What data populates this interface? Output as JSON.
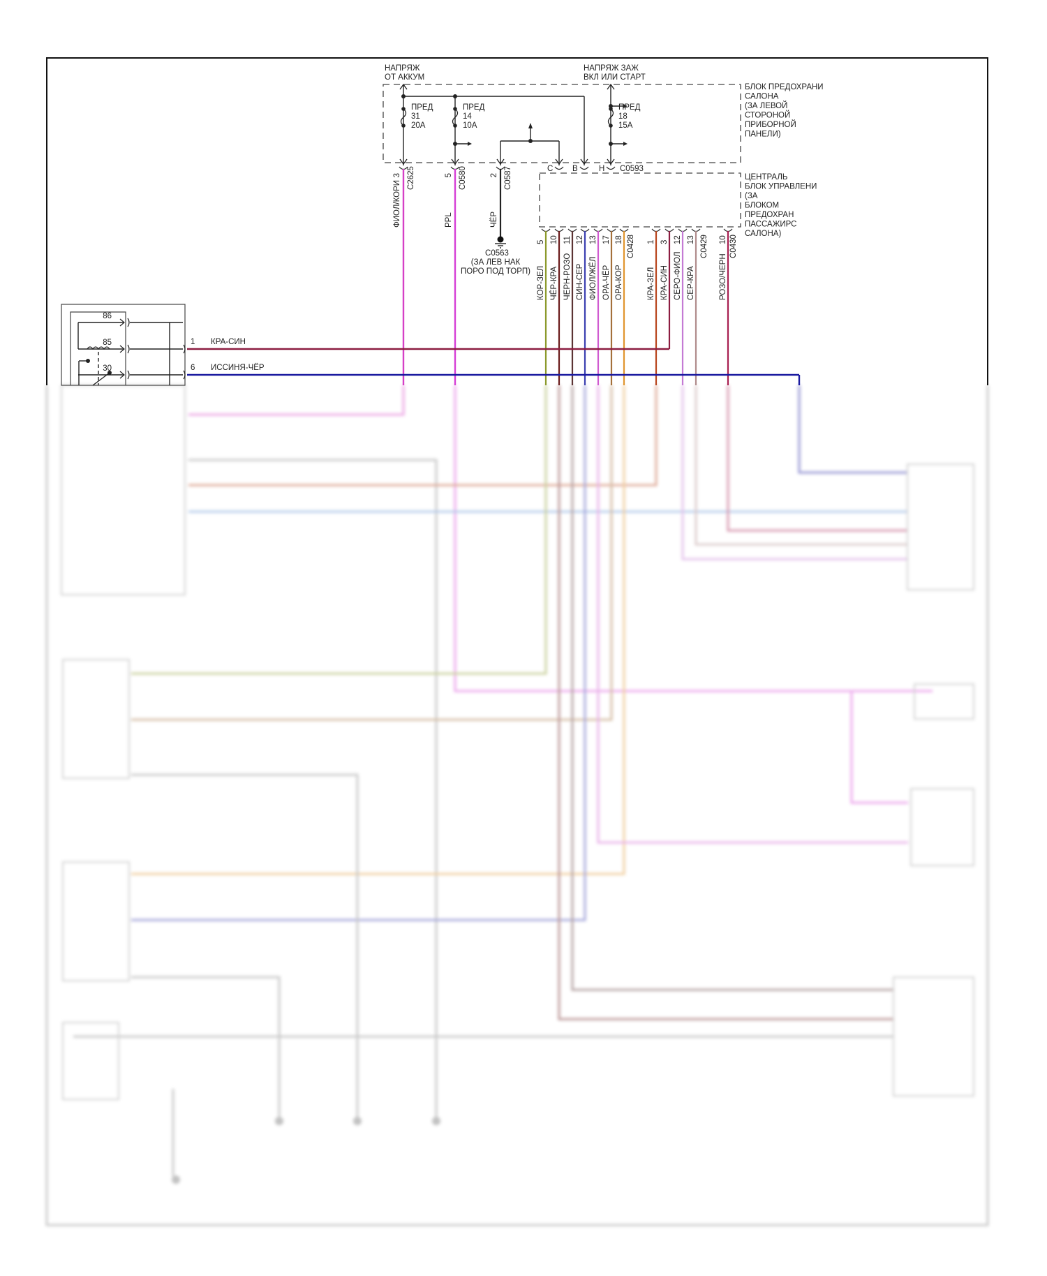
{
  "power_labels": {
    "battery": [
      "НАПРЯЖ",
      "ОТ АККУМ"
    ],
    "ignition": [
      "НАПРЯЖ ЗАЖ",
      "ВКЛ ИЛИ СТАРТ"
    ]
  },
  "fuse_block": {
    "label": [
      "БЛОК ПРЕДОХРАНИ",
      "САЛОНА",
      "(ЗА ЛЕВОЙ",
      "СТОРОНОЙ",
      "ПРИБОРНОЙ",
      "ПАНЕЛИ)"
    ],
    "fuses": [
      {
        "name": "ПРЕД",
        "number": "31",
        "rating": "20A"
      },
      {
        "name": "ПРЕД",
        "number": "14",
        "rating": "10A"
      },
      {
        "name": "ПРЕД",
        "number": "18",
        "rating": "15A"
      }
    ],
    "pins": [
      "C",
      "B",
      "H"
    ],
    "connector": "C0593"
  },
  "top_wires": [
    {
      "pin": "3",
      "color_label": "ФИОЛ/КОРИ",
      "connector": "C2625",
      "color": "#d63fc6"
    },
    {
      "pin": "5",
      "color_label": "PPL",
      "connector": "C0580",
      "color": "#d63fd6"
    },
    {
      "pin": "2",
      "color_label": "ЧЁР",
      "connector": "C0587",
      "color": "#222222"
    }
  ],
  "ground": {
    "id": "C0563",
    "location": [
      "(ЗА ЛЕВ НАК",
      "ПОРО ПОД ТОРП)"
    ]
  },
  "central_module": {
    "label": [
      "ЦЕНТРАЛЬ",
      "БЛОК УПРАВЛЕНИ",
      "(ЗА",
      "БЛОКОМ",
      "ПРЕДОХРАН",
      "ПАССАЖИРС",
      "САЛОНА)"
    ],
    "connectors": [
      {
        "id": "C0428",
        "wires": [
          {
            "pin": "5",
            "color_label": "КОР-ЗЕЛ",
            "color": "#8c9a2c"
          },
          {
            "pin": "10",
            "color_label": "ЧЁР-КРА",
            "color": "#6b1c1c"
          },
          {
            "pin": "11",
            "color_label": "ЧЕРН-РОЗО",
            "color": "#5c3434"
          },
          {
            "pin": "12",
            "color_label": "СИН-СЕР",
            "color": "#3b3fb0"
          },
          {
            "pin": "13",
            "color_label": "ФИОЛ/ЖЁЛ",
            "color": "#d05ad0"
          },
          {
            "pin": "17",
            "color_label": "ОРА-ЧЁР",
            "color": "#a4703a"
          },
          {
            "pin": "18",
            "color_label": "ОРА-КОР",
            "color": "#e0952e"
          }
        ]
      },
      {
        "id": "C0429",
        "wires": [
          {
            "pin": "1",
            "color_label": "КРА-ЗЕЛ",
            "color": "#b8461e"
          },
          {
            "pin": "3",
            "color_label": "КРА-СИН",
            "color": "#8c1c40"
          },
          {
            "pin": "12",
            "color_label": "СЕРО-ФИОЛ",
            "color": "#c47ad4"
          },
          {
            "pin": "13",
            "color_label": "СЕР-КРА",
            "color": "#b08c8c"
          }
        ]
      },
      {
        "id": "C0430",
        "wires": [
          {
            "pin": "10",
            "color_label": "РОЗО/ЧЕРН",
            "color": "#a81e50"
          }
        ]
      }
    ]
  },
  "relay": {
    "pins": [
      "86",
      "85",
      "30"
    ],
    "wires": [
      {
        "pin": "1",
        "color_label": "КРА-СИН",
        "color": "#8c1c40"
      },
      {
        "pin": "6",
        "color_label": "ИССИНЯ-ЧЁР",
        "color": "#1a1aa0"
      }
    ]
  }
}
